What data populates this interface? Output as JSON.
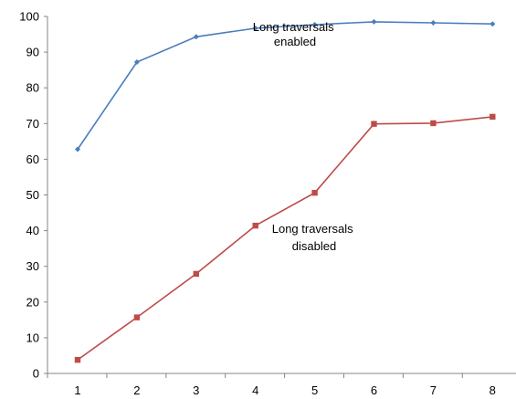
{
  "chart_data": {
    "type": "line",
    "x": [
      1,
      2,
      3,
      4,
      5,
      6,
      7,
      8
    ],
    "series": [
      {
        "name": "Long traversals enabled",
        "values": [
          62.8,
          87.2,
          94.3,
          96.7,
          97.7,
          98.5,
          98.2,
          97.9
        ],
        "color": "#4A7EBB",
        "marker": "diamond"
      },
      {
        "name": "Long traversals disabled",
        "values": [
          3.8,
          15.7,
          27.9,
          41.4,
          50.6,
          69.9,
          70.1,
          71.9
        ],
        "color": "#BE4B48",
        "marker": "square"
      }
    ],
    "annotations": [
      {
        "text_lines": [
          "Long traversals",
          "enabled"
        ]
      },
      {
        "text_lines": [
          "Long traversals",
          "disabled"
        ]
      }
    ],
    "xlabel": "",
    "ylabel": "",
    "ylim": [
      0,
      100
    ],
    "yticks": [
      0,
      10,
      20,
      30,
      40,
      50,
      60,
      70,
      80,
      90,
      100
    ],
    "xticks": [
      1,
      2,
      3,
      4,
      5,
      6,
      7,
      8
    ],
    "grid": false,
    "legend": "none",
    "title": ""
  }
}
